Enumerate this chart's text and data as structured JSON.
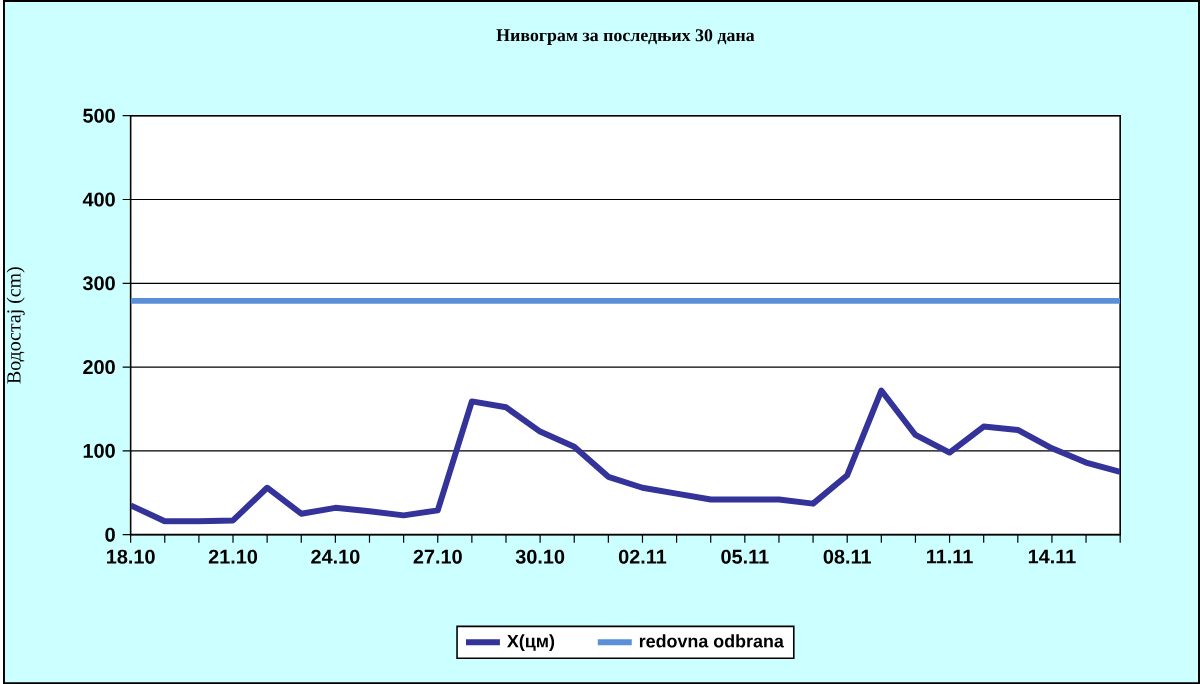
{
  "chart_data": {
    "type": "line",
    "title": "Нивограм за последњих 30 дана",
    "ylabel": "Водостај (cm)",
    "categories": [
      "18.10",
      null,
      null,
      "21.10",
      null,
      null,
      "24.10",
      null,
      null,
      "27.10",
      null,
      null,
      "30.10",
      null,
      null,
      "02.11",
      null,
      null,
      "05.11",
      null,
      null,
      "08.11",
      null,
      null,
      "11.11",
      null,
      null,
      "14.11",
      null,
      null
    ],
    "series": [
      {
        "name": "X(цм)",
        "color": "#333399",
        "values": [
          35,
          16,
          16,
          17,
          56,
          25,
          32,
          28,
          23,
          29,
          159,
          152,
          123,
          105,
          69,
          56,
          49,
          42,
          42,
          42,
          37,
          71,
          172,
          119,
          98,
          129,
          125,
          103,
          86,
          75
        ]
      },
      {
        "name": "redovna odbrana",
        "color": "#5b8fd8",
        "values": [
          279,
          279,
          279,
          279,
          279,
          279,
          279,
          279,
          279,
          279,
          279,
          279,
          279,
          279,
          279,
          279,
          279,
          279,
          279,
          279,
          279,
          279,
          279,
          279,
          279,
          279,
          279,
          279,
          279,
          279
        ]
      }
    ],
    "ylim": [
      0,
      500
    ],
    "yticks": [
      0,
      100,
      200,
      300,
      400,
      500
    ],
    "grid": "y",
    "legend": "bottom",
    "marker": "none",
    "line_style": "solid"
  }
}
